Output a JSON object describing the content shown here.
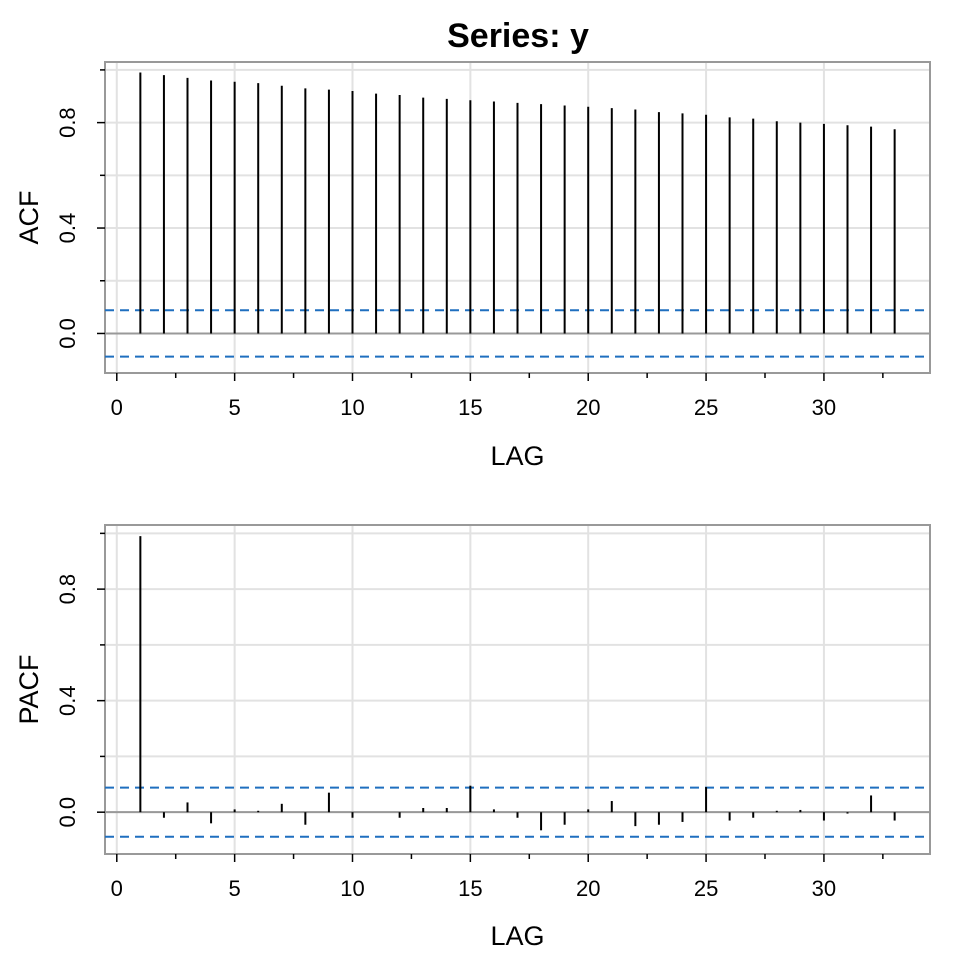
{
  "title": "Series:  y",
  "chart_data": [
    {
      "type": "bar",
      "name": "ACF",
      "ylabel": "ACF",
      "xlabel": "LAG",
      "xlim": [
        -0.5,
        34.5
      ],
      "ylim": [
        -0.15,
        1.03
      ],
      "x_ticks": [
        0,
        5,
        10,
        15,
        20,
        25,
        30
      ],
      "y_ticks": [
        0.0,
        0.4,
        0.8
      ],
      "y_tick_labels": [
        "0.0",
        "0.4",
        "0.8"
      ],
      "conf_bound": 0.088,
      "grid": true,
      "lags": [
        1,
        2,
        3,
        4,
        5,
        6,
        7,
        8,
        9,
        10,
        11,
        12,
        13,
        14,
        15,
        16,
        17,
        18,
        19,
        20,
        21,
        22,
        23,
        24,
        25,
        26,
        27,
        28,
        29,
        30,
        31,
        32,
        33
      ],
      "values": [
        0.99,
        0.98,
        0.97,
        0.96,
        0.955,
        0.95,
        0.94,
        0.93,
        0.925,
        0.92,
        0.91,
        0.905,
        0.895,
        0.89,
        0.885,
        0.88,
        0.875,
        0.87,
        0.865,
        0.86,
        0.855,
        0.85,
        0.84,
        0.835,
        0.83,
        0.82,
        0.815,
        0.805,
        0.8,
        0.795,
        0.79,
        0.785,
        0.775
      ]
    },
    {
      "type": "bar",
      "name": "PACF",
      "ylabel": "PACF",
      "xlabel": "LAG",
      "xlim": [
        -0.5,
        34.5
      ],
      "ylim": [
        -0.15,
        1.03
      ],
      "x_ticks": [
        0,
        5,
        10,
        15,
        20,
        25,
        30
      ],
      "y_ticks": [
        0.0,
        0.4,
        0.8
      ],
      "y_tick_labels": [
        "0.0",
        "0.4",
        "0.8"
      ],
      "conf_bound": 0.088,
      "grid": true,
      "lags": [
        1,
        2,
        3,
        4,
        5,
        6,
        7,
        8,
        9,
        10,
        11,
        12,
        13,
        14,
        15,
        16,
        17,
        18,
        19,
        20,
        21,
        22,
        23,
        24,
        25,
        26,
        27,
        28,
        29,
        30,
        31,
        32,
        33
      ],
      "values": [
        0.99,
        -0.02,
        0.035,
        -0.04,
        0.01,
        0.005,
        0.03,
        -0.045,
        0.07,
        -0.02,
        0.0,
        -0.02,
        0.015,
        0.015,
        0.095,
        0.01,
        -0.02,
        -0.065,
        -0.045,
        0.01,
        0.04,
        -0.05,
        -0.045,
        -0.035,
        0.09,
        -0.03,
        -0.02,
        0.005,
        0.008,
        -0.03,
        -0.005,
        0.06,
        -0.03
      ]
    }
  ],
  "colors": {
    "bars": "#000000",
    "conf_band": "#1f6fbf",
    "grid": "#e2e2e2",
    "frame": "#999999",
    "zero_line": "#999999"
  }
}
